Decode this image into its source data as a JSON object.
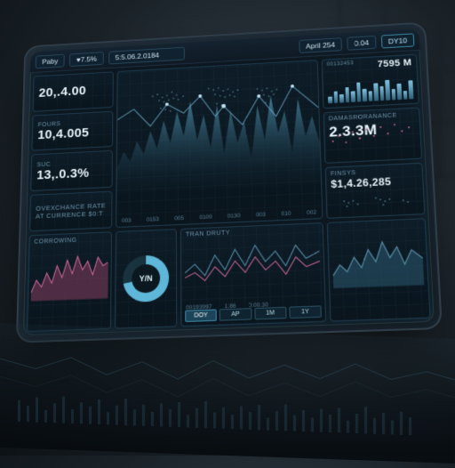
{
  "header": {
    "brand": "Paby",
    "pct": "♥7.5%",
    "big_num": "5:5.06.2.0184",
    "date": "April 254",
    "tag1": "0.04",
    "tag2": "DY10"
  },
  "stats": [
    {
      "label": "",
      "value": "20,.4.00"
    },
    {
      "label": "FOURS",
      "value": "10,4.005"
    },
    {
      "label": "SUC",
      "value": "13,.0.3%"
    },
    {
      "label": "Ovexchance rate at currence $0:T",
      "value": ""
    }
  ],
  "main_chart": {
    "type": "area-line",
    "world_overlay": true,
    "line_color": "#9fd6ea",
    "fill_top": "#3e7d99",
    "fill_bottom": "#0e2430",
    "grid_color": "#1c3442",
    "points": [
      28,
      44,
      36,
      60,
      48,
      72,
      50,
      88,
      62,
      96,
      70,
      110,
      64,
      128,
      58,
      112,
      72,
      94,
      84,
      118,
      66,
      100,
      90,
      82,
      110,
      96,
      80,
      118,
      60,
      100,
      84,
      74,
      108,
      90
    ],
    "x_ticks": [
      "003",
      "0153",
      "005",
      "0100",
      "0130",
      "003",
      "010",
      "002"
    ]
  },
  "right_panels": [
    {
      "label": "",
      "value": "7595 M",
      "small": "00132453",
      "bars": [
        30,
        55,
        40,
        70,
        52,
        90,
        60,
        48,
        80,
        64,
        92,
        50,
        72,
        40,
        84
      ]
    },
    {
      "label": "DAMASRORANANCE",
      "value": "2.3.3M",
      "pink": true
    },
    {
      "label": "FINSYS",
      "value": "$1,4.26,285",
      "map": true
    }
  ],
  "bottom": {
    "pink_left": {
      "label": "CΟRROWING"
    },
    "donut": {
      "label": "Y/N",
      "pct": 72
    },
    "line_mid": {
      "color1": "#8fd1e8",
      "color2": "#d56a9e",
      "buttons": [
        "DOY",
        "AP",
        "1M",
        "1Y"
      ],
      "active": 0,
      "ticks": [
        "00193997",
        "1:86",
        "0:00.30"
      ]
    },
    "right_spark": true,
    "footer": "TRAN DRUTY"
  },
  "colors": {
    "panel_border": "#1e3a4c",
    "text_primary": "#eaf6fc",
    "text_dim": "#6d94a8",
    "accent": "#5eb7d8",
    "pink": "#d56a9e",
    "bg": "#0d171f"
  }
}
